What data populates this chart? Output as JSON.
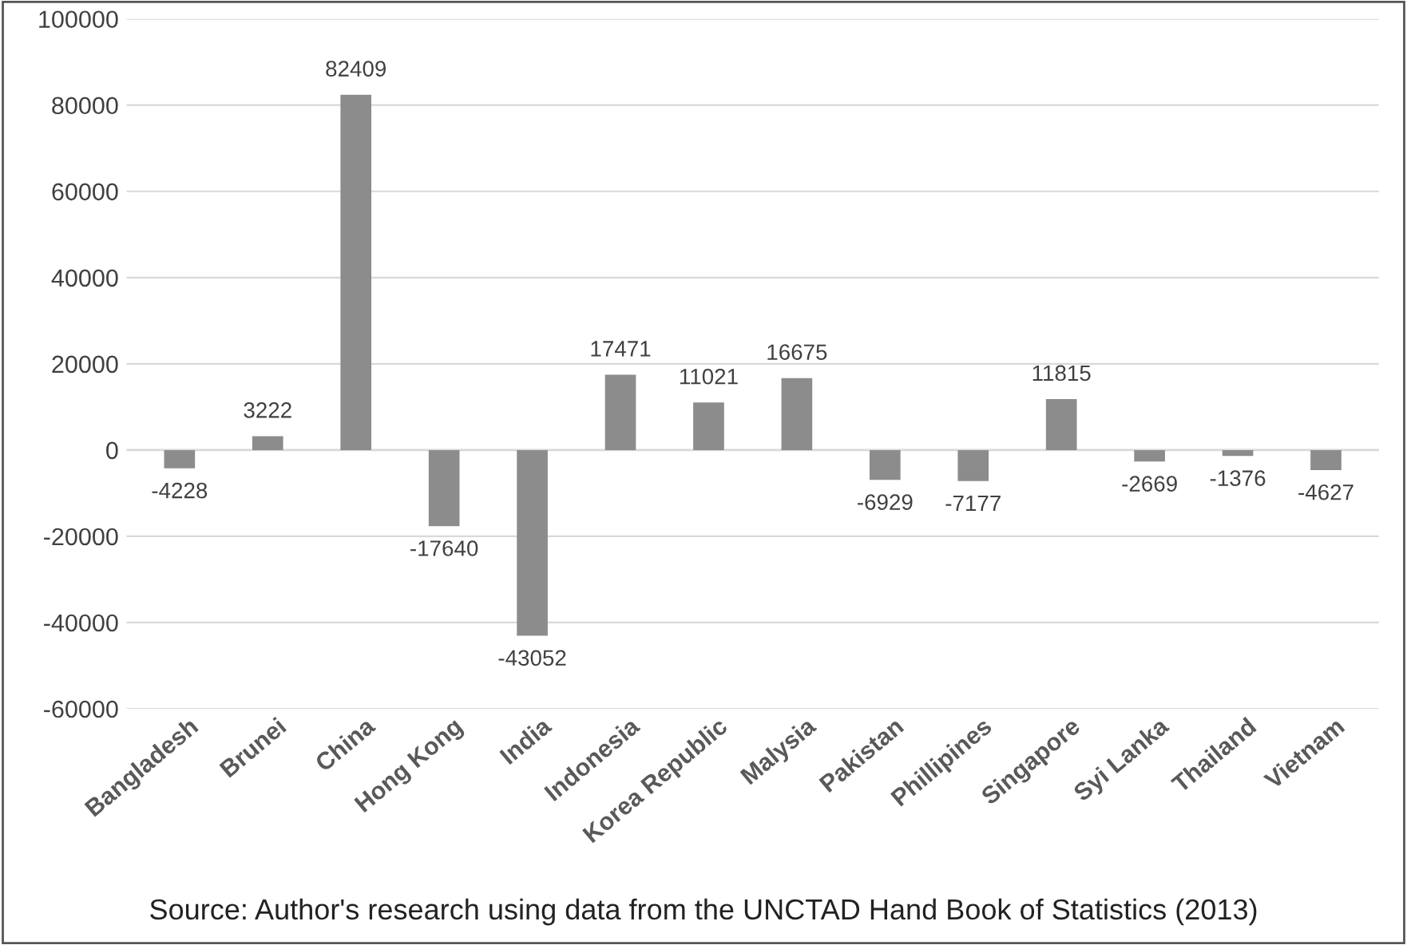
{
  "chart_data": {
    "type": "bar",
    "categories": [
      "Bangladesh",
      "Brunei",
      "China",
      "Hong Kong",
      "India",
      "Indonesia",
      "Korea Republic",
      "Malysia",
      "Pakistan",
      "Phillipines",
      "Singapore",
      "Syi Lanka",
      "Thailand",
      "Vietnam"
    ],
    "values": [
      -4228,
      3222,
      82409,
      -17640,
      -43052,
      17471,
      11021,
      16675,
      -6929,
      -7177,
      11815,
      -2669,
      -1376,
      -4627
    ],
    "color": "#8c8c8c",
    "ylim": [
      -60000,
      100000
    ],
    "yticks": [
      -60000,
      -40000,
      -20000,
      0,
      20000,
      40000,
      60000,
      80000,
      100000
    ],
    "grid": "y",
    "data_labels": true,
    "annotations": [
      "Source: Author's research using data from the UNCTAD Hand Book of Statistics (2013)"
    ]
  }
}
